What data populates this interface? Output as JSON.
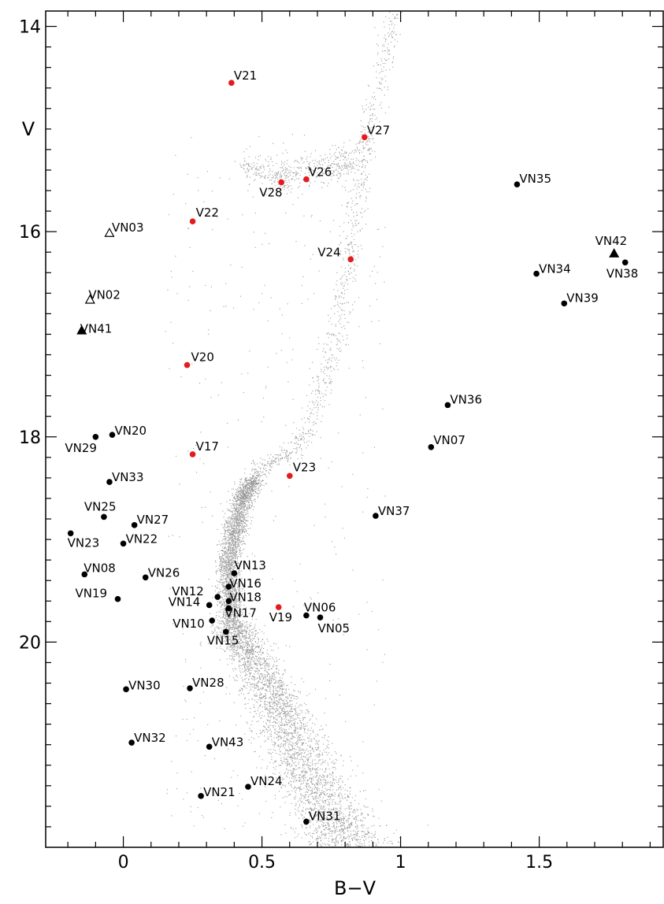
{
  "chart_data": {
    "type": "scatter",
    "title": "",
    "xlabel": "B−V",
    "ylabel": "V",
    "xlim": [
      -0.28,
      1.95
    ],
    "ylim": [
      13.85,
      22.0
    ],
    "y_inverted": true,
    "grid": false,
    "x_ticks": [
      0,
      0.5,
      1,
      1.5
    ],
    "x_tick_labels": [
      "0",
      "0.5",
      "1",
      "1.5"
    ],
    "y_ticks": [
      14,
      16,
      18,
      20
    ],
    "y_tick_labels": [
      "14",
      "16",
      "18",
      "20"
    ],
    "colors": {
      "field": "#9a9a9a",
      "red": "#e41a1c",
      "black": "#000000"
    },
    "series": [
      {
        "marker": "filled-circle",
        "color": "#e41a1c",
        "points": [
          {
            "label": "V17",
            "x": 0.25,
            "y": 18.17
          },
          {
            "label": "V19",
            "x": 0.56,
            "y": 19.66
          },
          {
            "label": "V20",
            "x": 0.23,
            "y": 17.3
          },
          {
            "label": "V21",
            "x": 0.39,
            "y": 14.55
          },
          {
            "label": "V22",
            "x": 0.25,
            "y": 15.9
          },
          {
            "label": "V23",
            "x": 0.6,
            "y": 18.38
          },
          {
            "label": "V24",
            "x": 0.82,
            "y": 16.27
          },
          {
            "label": "V26",
            "x": 0.66,
            "y": 15.49
          },
          {
            "label": "V27",
            "x": 0.87,
            "y": 15.08
          },
          {
            "label": "V28",
            "x": 0.57,
            "y": 15.52
          }
        ]
      },
      {
        "marker": "filled-circle",
        "color": "#000000",
        "points": [
          {
            "label": "VN05",
            "x": 0.71,
            "y": 19.76
          },
          {
            "label": "VN06",
            "x": 0.66,
            "y": 19.74
          },
          {
            "label": "VN07",
            "x": 1.11,
            "y": 18.1
          },
          {
            "label": "VN08",
            "x": -0.14,
            "y": 19.34
          },
          {
            "label": "VN10",
            "x": 0.32,
            "y": 19.79
          },
          {
            "label": "VN12",
            "x": 0.34,
            "y": 19.56
          },
          {
            "label": "VN13",
            "x": 0.4,
            "y": 19.33
          },
          {
            "label": "VN14",
            "x": 0.31,
            "y": 19.64
          },
          {
            "label": "VN15",
            "x": 0.37,
            "y": 19.9
          },
          {
            "label": "VN16",
            "x": 0.38,
            "y": 19.46
          },
          {
            "label": "VN17",
            "x": 0.38,
            "y": 19.67
          },
          {
            "label": "VN18",
            "x": 0.38,
            "y": 19.6
          },
          {
            "label": "VN19",
            "x": -0.02,
            "y": 19.58
          },
          {
            "label": "VN20",
            "x": -0.04,
            "y": 17.98
          },
          {
            "label": "VN21",
            "x": 0.28,
            "y": 21.5
          },
          {
            "label": "VN22",
            "x": 0.0,
            "y": 19.04
          },
          {
            "label": "VN23",
            "x": -0.19,
            "y": 18.94
          },
          {
            "label": "VN24",
            "x": 0.45,
            "y": 21.41
          },
          {
            "label": "VN25",
            "x": -0.07,
            "y": 18.78
          },
          {
            "label": "VN26",
            "x": 0.08,
            "y": 19.37
          },
          {
            "label": "VN27",
            "x": 0.04,
            "y": 18.86
          },
          {
            "label": "VN28",
            "x": 0.24,
            "y": 20.45
          },
          {
            "label": "VN29",
            "x": -0.1,
            "y": 18.0
          },
          {
            "label": "VN30",
            "x": 0.01,
            "y": 20.46
          },
          {
            "label": "VN31",
            "x": 0.66,
            "y": 21.75
          },
          {
            "label": "VN32",
            "x": 0.03,
            "y": 20.98
          },
          {
            "label": "VN33",
            "x": -0.05,
            "y": 18.44
          },
          {
            "label": "VN34",
            "x": 1.49,
            "y": 16.41
          },
          {
            "label": "VN35",
            "x": 1.42,
            "y": 15.54
          },
          {
            "label": "VN36",
            "x": 1.17,
            "y": 17.69
          },
          {
            "label": "VN37",
            "x": 0.91,
            "y": 18.77
          },
          {
            "label": "VN38",
            "x": 1.81,
            "y": 16.3
          },
          {
            "label": "VN39",
            "x": 1.59,
            "y": 16.7
          },
          {
            "label": "VN43",
            "x": 0.31,
            "y": 21.02
          }
        ]
      },
      {
        "marker": "filled-triangle",
        "color": "#000000",
        "points": [
          {
            "label": "VN41",
            "x": -0.15,
            "y": 16.97
          },
          {
            "label": "VN42",
            "x": 1.77,
            "y": 16.22
          }
        ]
      },
      {
        "marker": "open-triangle",
        "color": "#000000",
        "points": [
          {
            "label": "VN02",
            "x": -0.12,
            "y": 16.67
          },
          {
            "label": "VN03",
            "x": -0.05,
            "y": 16.02
          }
        ]
      }
    ],
    "field_stars": {
      "marker": "dot",
      "color": "#9a9a9a",
      "branches": [
        {
          "part": "red-giant-branch",
          "points": [
            [
              0.98,
              13.85
            ],
            [
              0.95,
              14.2
            ],
            [
              0.92,
              14.6
            ],
            [
              0.88,
              15.0
            ],
            [
              0.86,
              15.3
            ],
            [
              0.84,
              15.7
            ],
            [
              0.82,
              16.1
            ],
            [
              0.8,
              16.5
            ],
            [
              0.78,
              16.9
            ],
            [
              0.74,
              17.3
            ],
            [
              0.7,
              17.65
            ],
            [
              0.66,
              17.95
            ],
            [
              0.6,
              18.15
            ],
            [
              0.52,
              18.25
            ],
            [
              0.47,
              18.4
            ]
          ],
          "count": 900
        },
        {
          "part": "horizontal-branch",
          "points": [
            [
              0.43,
              15.35
            ],
            [
              0.55,
              15.45
            ],
            [
              0.65,
              15.4
            ],
            [
              0.75,
              15.35
            ],
            [
              0.82,
              15.3
            ]
          ],
          "count": 500
        },
        {
          "part": "subgiant-branch",
          "points": [
            [
              0.47,
              18.4
            ],
            [
              0.43,
              18.6
            ],
            [
              0.4,
              18.9
            ],
            [
              0.38,
              19.2
            ],
            [
              0.38,
              19.5
            ],
            [
              0.39,
              19.8
            ]
          ],
          "count": 2500
        },
        {
          "part": "main-sequence",
          "points": [
            [
              0.39,
              19.8
            ],
            [
              0.45,
              20.1
            ],
            [
              0.53,
              20.5
            ],
            [
              0.6,
              20.9
            ],
            [
              0.67,
              21.3
            ],
            [
              0.75,
              21.7
            ],
            [
              0.82,
              22.0
            ]
          ],
          "count": 3500
        },
        {
          "part": "field-scatter",
          "xrange": [
            0.15,
            0.95
          ],
          "yrange": [
            15.0,
            21.9
          ],
          "count": 420
        }
      ]
    }
  }
}
